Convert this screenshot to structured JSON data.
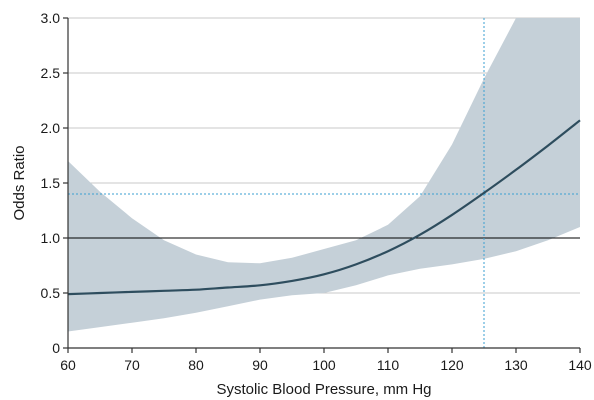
{
  "chart_data": {
    "type": "line",
    "title": "",
    "xlabel": "Systolic Blood Pressure, mm Hg",
    "ylabel": "Odds Ratio",
    "xlim": [
      60,
      140
    ],
    "ylim": [
      0,
      3.0
    ],
    "xticks": [
      60,
      70,
      80,
      90,
      100,
      110,
      120,
      130,
      140
    ],
    "xtick_labels": [
      "60",
      "70",
      "80",
      "90",
      "100",
      "110",
      "120",
      "130",
      "140"
    ],
    "yticks": [
      0,
      0.5,
      1.0,
      1.5,
      2.0,
      2.5,
      3.0
    ],
    "ytick_labels": [
      "0",
      "0.5",
      "1.0",
      "1.5",
      "2.0",
      "2.5",
      "3.0"
    ],
    "grid": "horizontal",
    "reference_line": {
      "y": 1.0
    },
    "marker": {
      "x": 125,
      "y": 1.4
    },
    "series": [
      {
        "type": "line",
        "x": [
          60,
          65,
          70,
          75,
          80,
          85,
          90,
          95,
          100,
          105,
          110,
          115,
          120,
          125,
          130,
          135,
          140
        ],
        "y": [
          0.49,
          0.5,
          0.51,
          0.52,
          0.53,
          0.55,
          0.57,
          0.61,
          0.67,
          0.76,
          0.88,
          1.03,
          1.21,
          1.41,
          1.62,
          1.84,
          2.07
        ],
        "ci_lower": [
          0.15,
          0.19,
          0.23,
          0.27,
          0.32,
          0.38,
          0.44,
          0.48,
          0.5,
          0.57,
          0.66,
          0.72,
          0.76,
          0.81,
          0.88,
          0.98,
          1.1
        ],
        "ci_upper": [
          1.7,
          1.42,
          1.18,
          0.98,
          0.85,
          0.78,
          0.77,
          0.82,
          0.9,
          0.98,
          1.12,
          1.38,
          1.85,
          2.45,
          3.0,
          3.0,
          3.0
        ]
      }
    ],
    "colors": {
      "line": "#2e4d5e",
      "band": "#c5d0d8",
      "grid": "#c9c9c9",
      "reference": "#000000",
      "marker": "#3b9fd2",
      "axis": "#333333"
    }
  }
}
